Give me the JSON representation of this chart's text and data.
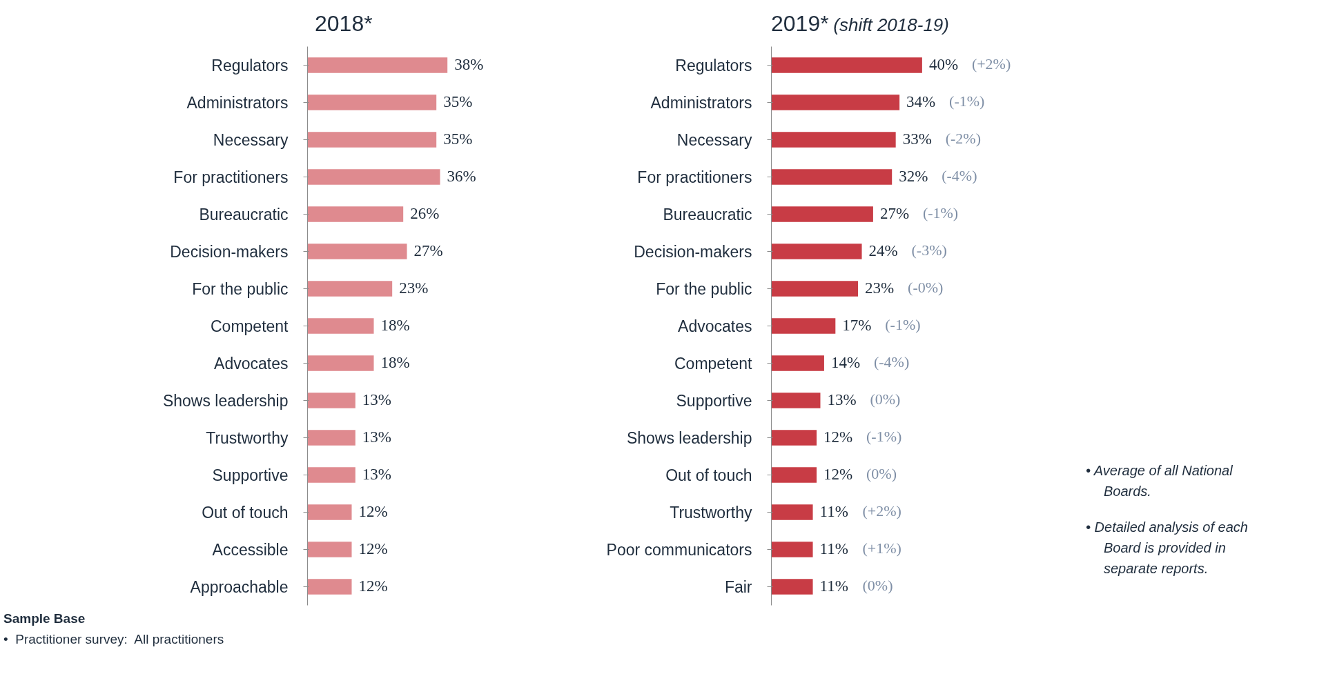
{
  "chart_data": [
    {
      "type": "bar",
      "orientation": "horizontal",
      "title": "2018*",
      "categories": [
        "Regulators",
        "Administrators",
        "Necessary",
        "For practitioners",
        "Bureaucratic",
        "Decision-makers",
        "For the public",
        "Competent",
        "Advocates",
        "Shows leadership",
        "Trustworthy",
        "Supportive",
        "Out of touch",
        "Accessible",
        "Approachable"
      ],
      "values": [
        38,
        35,
        35,
        36,
        26,
        27,
        23,
        18,
        18,
        13,
        13,
        13,
        12,
        12,
        12
      ],
      "value_labels": [
        "38%",
        "35%",
        "35%",
        "36%",
        "26%",
        "27%",
        "23%",
        "18%",
        "18%",
        "13%",
        "13%",
        "13%",
        "12%",
        "12%",
        "12%"
      ],
      "color": "#df8a8f",
      "annotations": [
        "Sample Base",
        "•  Practitioner survey:  All practitioners"
      ]
    },
    {
      "type": "bar",
      "orientation": "horizontal",
      "title": "2019*",
      "subtitle": "(shift 2018-19)",
      "categories": [
        "Regulators",
        "Administrators",
        "Necessary",
        "For practitioners",
        "Bureaucratic",
        "Decision-makers",
        "For the public",
        "Advocates",
        "Competent",
        "Supportive",
        "Shows leadership",
        "Out of touch",
        "Trustworthy",
        "Poor communicators",
        "Fair"
      ],
      "values": [
        40,
        34,
        33,
        32,
        27,
        24,
        23,
        17,
        14,
        13,
        12,
        12,
        11,
        11,
        11
      ],
      "value_labels": [
        "40%",
        "34%",
        "33%",
        "32%",
        "27%",
        "24%",
        "23%",
        "17%",
        "14%",
        "13%",
        "12%",
        "12%",
        "11%",
        "11%",
        "11%"
      ],
      "color": "#c83c45",
      "annotations": [
        "(+2%)",
        "(-1%)",
        "(-2%)",
        "(-4%)",
        "(-1%)",
        "(-3%)",
        "(-0%)",
        "(-1%)",
        "(-4%)",
        "(0%)",
        "(-1%)",
        "(0%)",
        "(+2%)",
        "(+1%)",
        "(0%)",
        "•  Average of all National Boards.",
        "•  Detailed analysis of each Board is provided in separate reports."
      ]
    }
  ]
}
